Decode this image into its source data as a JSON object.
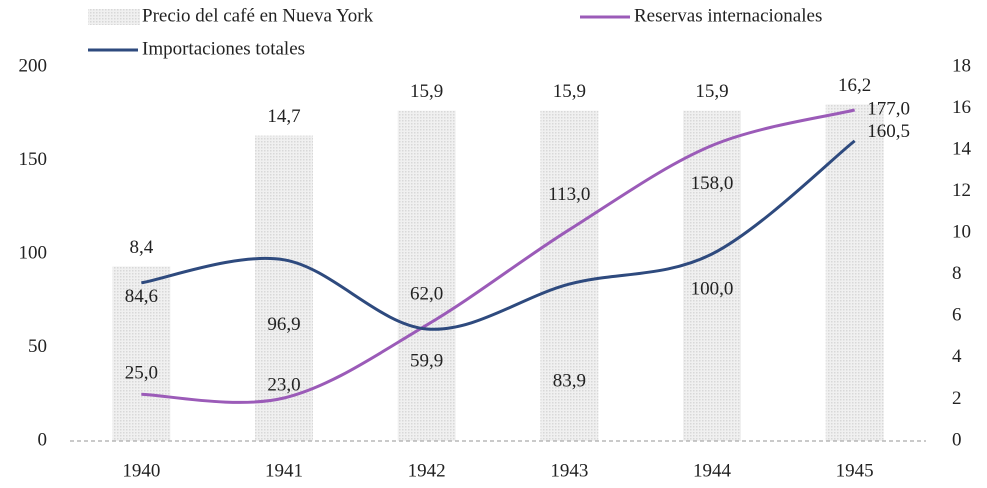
{
  "chart_data": {
    "type": "bar",
    "categories": [
      "1940",
      "1941",
      "1942",
      "1943",
      "1944",
      "1945"
    ],
    "series": [
      {
        "name": "Precio del café en Nueva York",
        "type": "bar",
        "axis": "y2",
        "color": "#e6e6e6",
        "values": [
          8.4,
          14.7,
          15.9,
          15.9,
          15.9,
          16.2
        ],
        "value_labels": [
          "8,4",
          "14,7",
          "15,9",
          "15,9",
          "15,9",
          "16,2"
        ]
      },
      {
        "name": "Reservas internacionales",
        "type": "line",
        "color": "#9b5bb8",
        "values": [
          25.0,
          23.0,
          62.0,
          113.0,
          158.0,
          177.0
        ],
        "value_labels": [
          "25,0",
          "23,0",
          "62,0",
          "113,0",
          "158,0",
          "177,0"
        ]
      },
      {
        "name": "Importaciones totales",
        "type": "line",
        "color": "#2e4a7e",
        "values": [
          84.6,
          96.9,
          59.9,
          83.9,
          100.0,
          160.5
        ],
        "value_labels": [
          "84,6",
          "96,9",
          "59,9",
          "83,9",
          "100,0",
          "160,5"
        ]
      }
    ],
    "ylim": [
      0,
      200
    ],
    "yticks": [
      0,
      50,
      100,
      150,
      200
    ],
    "y2lim": [
      0,
      18
    ],
    "y2ticks": [
      0,
      2,
      4,
      6,
      8,
      10,
      12,
      14,
      16,
      18
    ],
    "legend": "top",
    "grid": false
  }
}
